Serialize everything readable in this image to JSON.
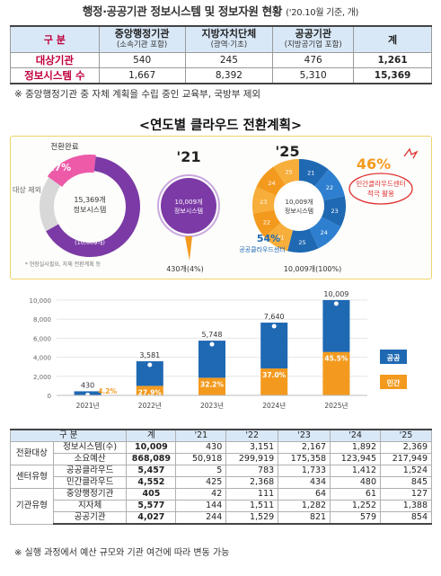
{
  "title": "행정·공공기관 정보시스템 및 정보자원 현황",
  "title_sub": "('20.10월 기준, 개)",
  "table1": {
    "headers": [
      {
        "name": "구 분",
        "sub": ""
      },
      {
        "name": "중앙행정기관",
        "sub": "(소속기관 포함)"
      },
      {
        "name": "지방자치단체",
        "sub": "(광역·기초)"
      },
      {
        "name": "공공기관",
        "sub": "(지방공기업 포함)"
      },
      {
        "name": "계",
        "sub": ""
      }
    ],
    "rows": [
      {
        "label": "대상기관",
        "values": [
          "540",
          "245",
          "476",
          "1,261"
        ]
      },
      {
        "label": "정보시스템 수",
        "values": [
          "1,667",
          "8,392",
          "5,310",
          "15,369"
        ]
      }
    ]
  },
  "note1": "※ 중앙행정기관 중 자체 계획을 수립 중인 교육부, 국방부 제외",
  "section_title": "<연도별 클라우드 전환계획>",
  "infographic": {
    "donut": {
      "top_label": "전환완료",
      "percent": "17%",
      "left_label": "대상 제외",
      "center_line1": "15,369개",
      "center_line2": "정보시스템",
      "bottom_label1": "사업대상",
      "bottom_label2": "(10,009개)",
      "footnote": "* 현장실사필요, 자체 전환계획 등",
      "completed_fraction": 0.17,
      "target_fraction": 0.65
    },
    "y21": {
      "year": "'21",
      "center_line1": "10,009개",
      "center_line2": "정보시스템",
      "bottom": "430개(4%)"
    },
    "y25": {
      "year": "'25",
      "center_line1": "10,009개",
      "center_line2": "정보시스템",
      "pct_public": "54%",
      "label_public": "공공클라우드센터",
      "pct_private": "46%",
      "label_private": "민간클라우드센터",
      "label_private2": "적극 활용",
      "bottom": "10,009개(100%)",
      "segments": [
        "21",
        "22",
        "23",
        "24",
        "25",
        "21",
        "22",
        "23",
        "24",
        "25"
      ]
    }
  },
  "chart_data": {
    "type": "bar",
    "stacked": true,
    "categories": [
      "2021년",
      "2022년",
      "2023년",
      "2024년",
      "2025년"
    ],
    "totals": [
      430,
      3581,
      5748,
      7640,
      10009
    ],
    "total_labels": [
      "430",
      "3,581",
      "5,748",
      "7,640",
      "10,009"
    ],
    "series": [
      {
        "name": "민간",
        "share_labels": [
          "4.2%",
          "27.9%",
          "32.2%",
          "37.0%",
          "45.5%"
        ],
        "share": [
          0.042,
          0.279,
          0.322,
          0.37,
          0.455
        ],
        "color": "#f39a1e"
      },
      {
        "name": "공공",
        "share": [
          0.958,
          0.721,
          0.678,
          0.63,
          0.545
        ],
        "color": "#1f69b3"
      }
    ],
    "yticks": [
      "0",
      "2,000",
      "4,000",
      "6,000",
      "8,000",
      "10,000"
    ],
    "ylim": [
      0,
      10000
    ],
    "legend": [
      "공공",
      "민간"
    ]
  },
  "table2": {
    "headers": [
      "구 분",
      "계",
      "'21",
      "'22",
      "'23",
      "'24",
      "'25"
    ],
    "rows": [
      {
        "group": "",
        "label": "정보시스템(수)",
        "values": [
          "10,009",
          "430",
          "3,151",
          "2,167",
          "1,892",
          "2,369"
        ]
      },
      {
        "group": "전환대상",
        "label": "소요예산",
        "values": [
          "868,089",
          "50,918",
          "299,919",
          "175,358",
          "123,945",
          "217,949"
        ]
      },
      {
        "group": "",
        "label": "공공클라우드",
        "values": [
          "5,457",
          "5",
          "783",
          "1,733",
          "1,412",
          "1,524"
        ]
      },
      {
        "group": "센터유형",
        "label": "민간클라우드",
        "values": [
          "4,552",
          "425",
          "2,368",
          "434",
          "480",
          "845"
        ]
      },
      {
        "group": "",
        "label": "중앙행정기관",
        "values": [
          "405",
          "42",
          "111",
          "64",
          "61",
          "127"
        ]
      },
      {
        "group": "기관유형",
        "label": "지자체",
        "values": [
          "5,577",
          "144",
          "1,511",
          "1,282",
          "1,252",
          "1,388"
        ]
      },
      {
        "group": "",
        "label": "공공기관",
        "values": [
          "4,027",
          "244",
          "1,529",
          "821",
          "579",
          "854"
        ]
      }
    ]
  },
  "note2": "※ 실행 과정에서 예산 규모와 기관 여건에 따라 변동 가능",
  "colors": {
    "public": "#1f69b3",
    "private": "#f39a1e",
    "purple": "#7b3aa6",
    "pink": "#ec5aa8"
  }
}
